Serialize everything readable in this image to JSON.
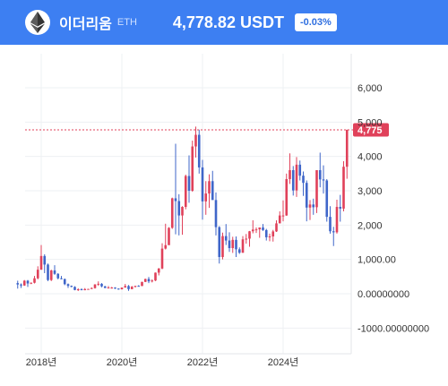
{
  "header": {
    "coin_name": "이더리움",
    "coin_symbol": "ETH",
    "price": "4,778.82 USDT",
    "change": "-0.03%",
    "icon": "ethereum-icon"
  },
  "colors": {
    "header_bg": "#3d7ff2",
    "up": "#e0415a",
    "down": "#3f66c9",
    "price_line": "#e0415a",
    "grid": "#eef0f3"
  },
  "chart_data": {
    "type": "candlestick",
    "title": "",
    "xlabel": "",
    "ylabel": "",
    "ylim": [
      -1000,
      6500
    ],
    "y_ticks": [
      {
        "value": 6000,
        "label": "6,000"
      },
      {
        "value": 5000,
        "label": "5,000"
      },
      {
        "value": 4000,
        "label": "4,000"
      },
      {
        "value": 3000,
        "label": "3,000"
      },
      {
        "value": 2000,
        "label": "2,000"
      },
      {
        "value": 1000,
        "label": "1,000.00"
      },
      {
        "value": 0,
        "label": "0.00000000"
      },
      {
        "value": -1000,
        "label": "-1000.00000000"
      }
    ],
    "x_ticks": [
      "2018년",
      "2020년",
      "2022년",
      "2024년"
    ],
    "x_tick_dates": [
      "2018-01",
      "2020-01",
      "2022-01",
      "2024-01"
    ],
    "current_price": {
      "value": 4775,
      "label": "4,775"
    },
    "candles": [
      [
        "2017-06",
        310,
        380,
        150,
        270
      ],
      [
        "2017-07",
        270,
        300,
        170,
        240
      ],
      [
        "2017-08",
        240,
        400,
        230,
        380
      ],
      [
        "2017-09",
        380,
        400,
        200,
        300
      ],
      [
        "2017-10",
        300,
        330,
        280,
        320
      ],
      [
        "2017-11",
        320,
        520,
        300,
        450
      ],
      [
        "2017-12",
        450,
        800,
        420,
        700
      ],
      [
        "2018-01",
        700,
        1420,
        700,
        1100
      ],
      [
        "2018-02",
        1100,
        1150,
        600,
        850
      ],
      [
        "2018-03",
        850,
        880,
        370,
        400
      ],
      [
        "2018-04",
        400,
        700,
        370,
        680
      ],
      [
        "2018-05",
        680,
        830,
        550,
        580
      ],
      [
        "2018-06",
        580,
        600,
        420,
        450
      ],
      [
        "2018-07",
        450,
        520,
        420,
        430
      ],
      [
        "2018-08",
        430,
        440,
        250,
        280
      ],
      [
        "2018-09",
        280,
        300,
        170,
        230
      ],
      [
        "2018-10",
        230,
        240,
        190,
        200
      ],
      [
        "2018-11",
        200,
        220,
        100,
        110
      ],
      [
        "2018-12",
        110,
        160,
        80,
        130
      ],
      [
        "2019-01",
        130,
        160,
        100,
        105
      ],
      [
        "2019-02",
        105,
        165,
        100,
        135
      ],
      [
        "2019-03",
        135,
        145,
        125,
        140
      ],
      [
        "2019-04",
        140,
        185,
        140,
        165
      ],
      [
        "2019-05",
        165,
        280,
        150,
        270
      ],
      [
        "2019-06",
        270,
        360,
        230,
        290
      ],
      [
        "2019-07",
        290,
        310,
        190,
        215
      ],
      [
        "2019-08",
        215,
        230,
        160,
        170
      ],
      [
        "2019-09",
        170,
        225,
        155,
        180
      ],
      [
        "2019-10",
        180,
        200,
        150,
        180
      ],
      [
        "2019-11",
        180,
        190,
        140,
        150
      ],
      [
        "2019-12",
        150,
        155,
        120,
        130
      ],
      [
        "2020-01",
        130,
        180,
        125,
        180
      ],
      [
        "2020-02",
        180,
        285,
        180,
        225
      ],
      [
        "2020-03",
        225,
        255,
        85,
        135
      ],
      [
        "2020-04",
        135,
        225,
        130,
        205
      ],
      [
        "2020-05",
        205,
        225,
        180,
        230
      ],
      [
        "2020-06",
        230,
        250,
        215,
        225
      ],
      [
        "2020-07",
        225,
        350,
        225,
        345
      ],
      [
        "2020-08",
        345,
        440,
        340,
        430
      ],
      [
        "2020-09",
        430,
        490,
        310,
        360
      ],
      [
        "2020-10",
        360,
        420,
        330,
        385
      ],
      [
        "2020-11",
        385,
        620,
        370,
        615
      ],
      [
        "2020-12",
        615,
        750,
        535,
        735
      ],
      [
        "2021-01",
        735,
        1470,
        715,
        1315
      ],
      [
        "2021-02",
        1315,
        2040,
        1290,
        1415
      ],
      [
        "2021-03",
        1415,
        1940,
        1450,
        1920
      ],
      [
        "2021-04",
        1920,
        2800,
        1890,
        2780
      ],
      [
        "2021-05",
        2780,
        4370,
        1730,
        2700
      ],
      [
        "2021-06",
        2700,
        2900,
        1700,
        2280
      ],
      [
        "2021-07",
        2280,
        2550,
        1720,
        2530
      ],
      [
        "2021-08",
        2530,
        3470,
        2460,
        3430
      ],
      [
        "2021-09",
        3430,
        4030,
        2650,
        3000
      ],
      [
        "2021-10",
        3000,
        4460,
        2970,
        4290
      ],
      [
        "2021-11",
        4290,
        4870,
        3970,
        4630
      ],
      [
        "2021-12",
        4630,
        4780,
        3500,
        3680
      ],
      [
        "2022-01",
        3680,
        3900,
        2160,
        2690
      ],
      [
        "2022-02",
        2690,
        3280,
        2300,
        2920
      ],
      [
        "2022-03",
        2920,
        3480,
        2500,
        3280
      ],
      [
        "2022-04",
        3280,
        3580,
        2780,
        2730
      ],
      [
        "2022-05",
        2730,
        2950,
        1700,
        1940
      ],
      [
        "2022-06",
        1940,
        1970,
        880,
        1070
      ],
      [
        "2022-07",
        1070,
        1780,
        1000,
        1680
      ],
      [
        "2022-08",
        1680,
        2030,
        1420,
        1550
      ],
      [
        "2022-09",
        1550,
        1790,
        1220,
        1330
      ],
      [
        "2022-10",
        1330,
        1660,
        1190,
        1570
      ],
      [
        "2022-11",
        1570,
        1670,
        1070,
        1295
      ],
      [
        "2022-12",
        1295,
        1350,
        1160,
        1195
      ],
      [
        "2023-01",
        1195,
        1680,
        1190,
        1585
      ],
      [
        "2023-02",
        1585,
        1740,
        1460,
        1605
      ],
      [
        "2023-03",
        1605,
        1830,
        1370,
        1820
      ],
      [
        "2023-04",
        1820,
        2140,
        1760,
        1870
      ],
      [
        "2023-05",
        1870,
        1930,
        1770,
        1875
      ],
      [
        "2023-06",
        1875,
        1930,
        1630,
        1930
      ],
      [
        "2023-07",
        1930,
        2030,
        1830,
        1855
      ],
      [
        "2023-08",
        1855,
        1890,
        1550,
        1645
      ],
      [
        "2023-09",
        1645,
        1750,
        1530,
        1670
      ],
      [
        "2023-10",
        1670,
        1860,
        1520,
        1815
      ],
      [
        "2023-11",
        1815,
        2140,
        1800,
        2050
      ],
      [
        "2023-12",
        2050,
        2400,
        2050,
        2280
      ],
      [
        "2024-01",
        2280,
        2720,
        2110,
        2280
      ],
      [
        "2024-02",
        2280,
        3500,
        2270,
        3340
      ],
      [
        "2024-03",
        3340,
        4090,
        3200,
        3600
      ],
      [
        "2024-04",
        3600,
        3720,
        2860,
        3010
      ],
      [
        "2024-05",
        3010,
        3980,
        2820,
        3760
      ],
      [
        "2024-06",
        3760,
        3880,
        3300,
        3440
      ],
      [
        "2024-07",
        3440,
        3560,
        2850,
        3230
      ],
      [
        "2024-08",
        3230,
        3300,
        2110,
        2510
      ],
      [
        "2024-09",
        2510,
        2730,
        2150,
        2600
      ],
      [
        "2024-10",
        2600,
        2770,
        2300,
        2520
      ],
      [
        "2024-11",
        2520,
        3550,
        2350,
        3600
      ],
      [
        "2024-12",
        3600,
        4110,
        3100,
        3330
      ],
      [
        "2025-01",
        3330,
        3740,
        2920,
        3300
      ],
      [
        "2025-02",
        3300,
        3340,
        2100,
        2240
      ],
      [
        "2025-03",
        2240,
        2550,
        1750,
        1820
      ],
      [
        "2025-04",
        1820,
        1950,
        1390,
        1790
      ],
      [
        "2025-05",
        1790,
        2740,
        1750,
        2530
      ],
      [
        "2025-06",
        2530,
        2880,
        2100,
        2480
      ],
      [
        "2025-07",
        2480,
        3860,
        2400,
        3700
      ],
      [
        "2025-08",
        3700,
        4780,
        3350,
        4775
      ]
    ]
  }
}
